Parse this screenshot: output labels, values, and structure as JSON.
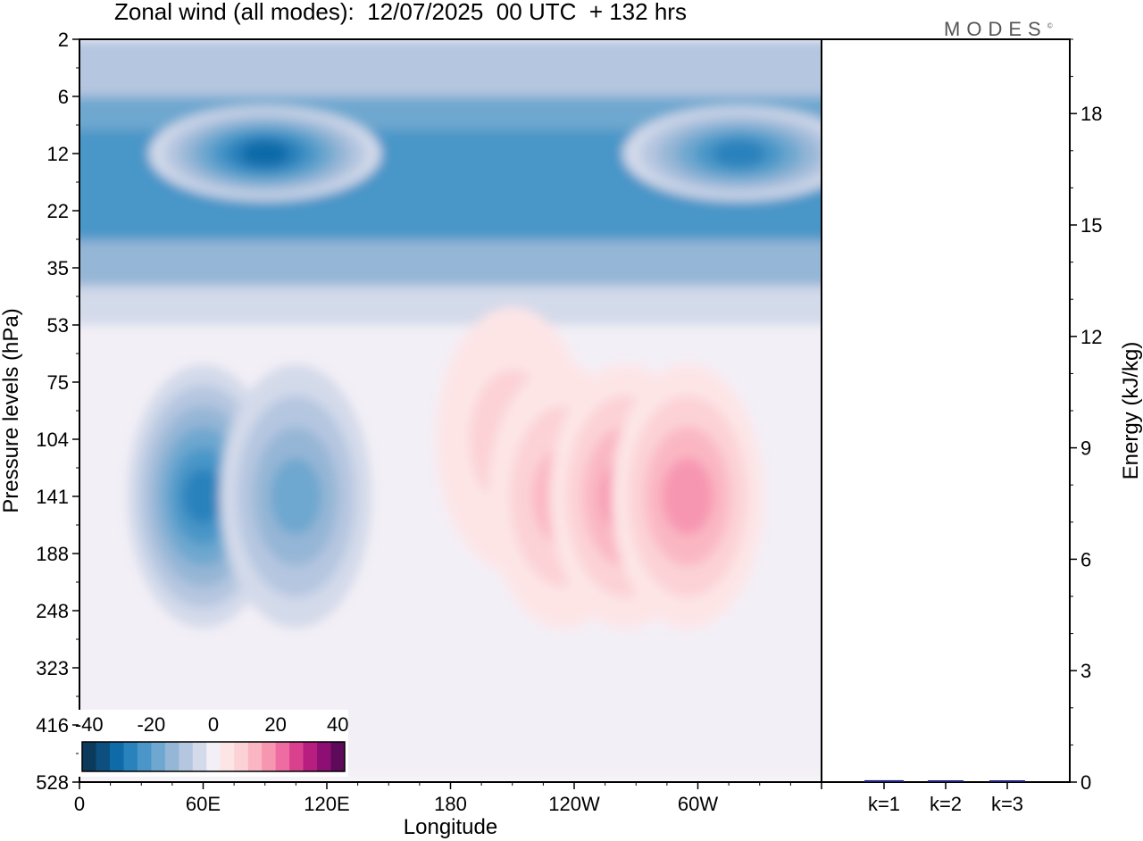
{
  "title": "Zonal wind (all modes):  12/07/2025  00 UTC  + 132 hrs",
  "brand": "MODES",
  "brand_mark": "©",
  "chart_data": [
    {
      "type": "heatmap",
      "title": "Zonal wind (all modes):  12/07/2025  00 UTC  + 132 hrs",
      "xlabel": "Longitude",
      "ylabel": "Pressure levels (hPa)",
      "x_ticks": [
        "0",
        "60E",
        "120E",
        "180",
        "120W",
        "60W"
      ],
      "y_ticks": [
        "2",
        "6",
        "12",
        "22",
        "35",
        "53",
        "75",
        "104",
        "141",
        "188",
        "248",
        "323",
        "416",
        "528"
      ],
      "colorbar": {
        "tick_labels": [
          "-40",
          "-20",
          "0",
          "20",
          "40"
        ],
        "levels": [
          -45,
          -40,
          -35,
          -30,
          -25,
          -20,
          -15,
          -10,
          -5,
          0,
          5,
          10,
          15,
          20,
          25,
          30,
          35,
          40,
          45
        ],
        "colors": [
          "#0c3a5c",
          "#0d4f7e",
          "#0f6ba8",
          "#2a82bc",
          "#4a96c8",
          "#6ea7cf",
          "#95b6d6",
          "#b5c6e0",
          "#d3daea",
          "#f3eff6",
          "#fde5e6",
          "#fcd2d6",
          "#fab7c3",
          "#f796b1",
          "#ef6ca3",
          "#d9418f",
          "#b71e80",
          "#8e0f74",
          "#5e0a5a"
        ]
      },
      "features": [
        {
          "lon": 60,
          "plev": 141,
          "u": -28
        },
        {
          "lon": 105,
          "plev": 141,
          "u": -20
        },
        {
          "lon": 90,
          "plev": 12,
          "u": -35
        },
        {
          "lon": 210,
          "plev": 104,
          "u": 12
        },
        {
          "lon": 235,
          "plev": 141,
          "u": 15
        },
        {
          "lon": 265,
          "plev": 141,
          "u": 18
        },
        {
          "lon": 295,
          "plev": 141,
          "u": 22
        },
        {
          "lon": 320,
          "plev": 12,
          "u": -30
        }
      ]
    },
    {
      "type": "bar",
      "categories": [
        "k=1",
        "k=2",
        "k=3"
      ],
      "values": [
        0.05,
        0.02,
        0.02
      ],
      "ylabel": "Energy (kJ/kg)",
      "ylim": [
        0,
        20
      ],
      "yticks": [
        0,
        3,
        6,
        9,
        12,
        15,
        18
      ],
      "bar_color": "#1a237e"
    }
  ]
}
